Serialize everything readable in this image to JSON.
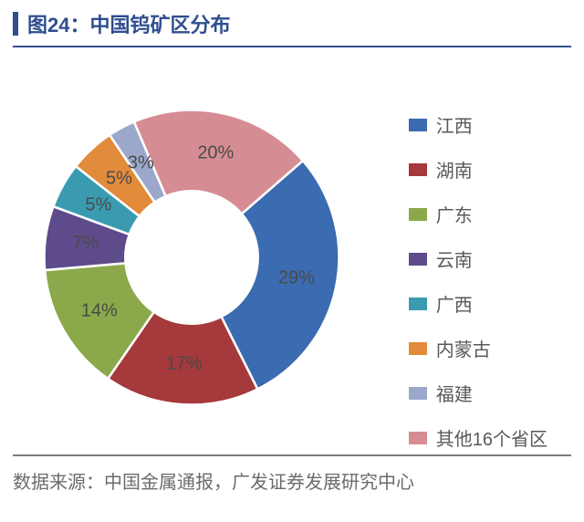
{
  "title": {
    "prefix": "图24：",
    "text": "中国钨矿区分布",
    "prefix_color": "#2f4e8f",
    "text_color": "#2f4e8f",
    "accent_color": "#2f4e8f",
    "underline_color": "#2f4e8f",
    "fontsize": 22
  },
  "chart": {
    "type": "donut",
    "inner_radius_ratio": 0.45,
    "background_color": "#ffffff",
    "label_fontsize": 20,
    "label_color": "#4a4a4a",
    "slices": [
      {
        "name": "江西",
        "value": 29,
        "label": "29%",
        "color": "#3b6bb0"
      },
      {
        "name": "湖南",
        "value": 17,
        "label": "17%",
        "color": "#a5393b"
      },
      {
        "name": "广东",
        "value": 14,
        "label": "14%",
        "color": "#8ba94a"
      },
      {
        "name": "云南",
        "value": 7,
        "label": "7%",
        "color": "#5e4b8b"
      },
      {
        "name": "广西",
        "value": 5,
        "label": "5%",
        "color": "#3a9bb0"
      },
      {
        "name": "内蒙古",
        "value": 5,
        "label": "5%",
        "color": "#e18b3b"
      },
      {
        "name": "福建",
        "value": 3,
        "label": "3%",
        "color": "#9ba8cc"
      },
      {
        "name": "其他16个省区",
        "value": 20,
        "label": "20%",
        "color": "#d68c93"
      }
    ],
    "start_angle_deg": -41
  },
  "legend": {
    "swatch_width": 20,
    "swatch_height": 14,
    "fontsize": 20,
    "text_color": "#595959"
  },
  "footer": {
    "text": "数据来源：中国金属通报，广发证券发展研究中心",
    "line_color": "#7a7a7a",
    "text_color": "#6b6b6b",
    "fontsize": 20
  }
}
